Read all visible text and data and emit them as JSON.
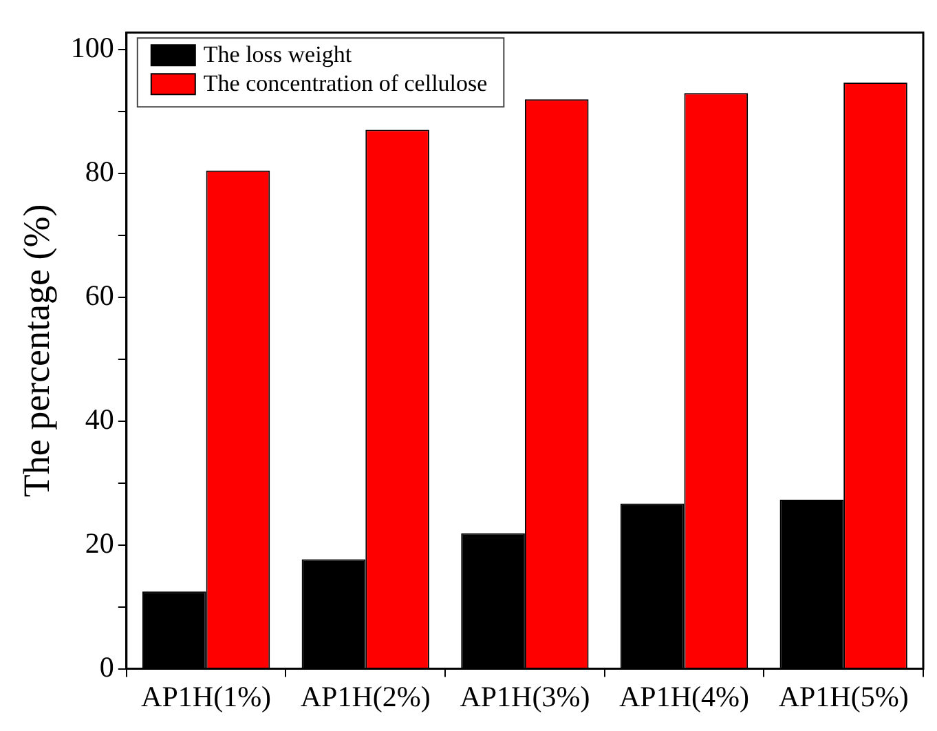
{
  "chart_data": {
    "type": "bar",
    "ylabel": "The percentage (%)",
    "categories": [
      "AP1H(1%)",
      "AP1H(2%)",
      "AP1H(3%)",
      "AP1H(4%)",
      "AP1H(5%)"
    ],
    "series": [
      {
        "name": "The loss weight",
        "color": "#000000",
        "values": [
          12.5,
          17.7,
          21.9,
          26.7,
          27.3
        ]
      },
      {
        "name": "The concentration of cellulose",
        "color": "#ff0000",
        "values": [
          80.5,
          87.1,
          92.0,
          93.0,
          94.7
        ]
      }
    ],
    "ylim": [
      0,
      102.8
    ],
    "yticks": [
      0,
      {
        "value": 10,
        "label": null
      },
      20,
      {
        "value": 30,
        "label": null
      },
      40,
      {
        "value": 50,
        "label": null
      },
      60,
      {
        "value": 70,
        "label": null
      },
      80,
      {
        "value": 90,
        "label": null
      },
      100
    ],
    "grid": false,
    "legend": "top left"
  }
}
